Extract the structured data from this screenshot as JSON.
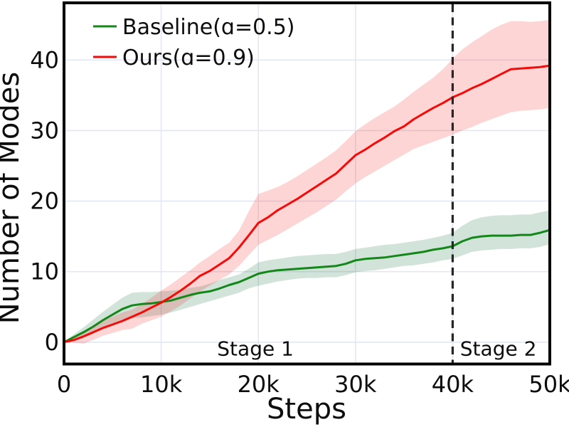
{
  "chart_data": {
    "type": "line",
    "title": "",
    "xlabel": "Steps",
    "ylabel": "Number of Modes",
    "xlim": [
      0,
      50000
    ],
    "ylim": [
      -3.1,
      48.1
    ],
    "grid": true,
    "legend_position": "upper-left",
    "colors": {
      "grid": "#e3e7f2",
      "spine": "#000000",
      "text": "#0d0d0d",
      "stage_divider": "#262626"
    },
    "x_ticks": [
      {
        "value": 0,
        "label": "0"
      },
      {
        "value": 10000,
        "label": "10k"
      },
      {
        "value": 20000,
        "label": "20k"
      },
      {
        "value": 30000,
        "label": "30k"
      },
      {
        "value": 40000,
        "label": "40k"
      },
      {
        "value": 50000,
        "label": "50k"
      }
    ],
    "y_ticks": [
      {
        "value": 0,
        "label": "0"
      },
      {
        "value": 10,
        "label": "10"
      },
      {
        "value": 20,
        "label": "20"
      },
      {
        "value": 30,
        "label": "30"
      },
      {
        "value": 40,
        "label": "40"
      }
    ],
    "x": [
      0,
      1000,
      2000,
      3000,
      4000,
      5000,
      6000,
      7000,
      8000,
      9000,
      10000,
      11000,
      12000,
      13000,
      14000,
      15000,
      16000,
      17000,
      18000,
      19000,
      20000,
      21000,
      22000,
      23000,
      24000,
      25000,
      26000,
      27000,
      28000,
      29000,
      30000,
      31000,
      32000,
      33000,
      34000,
      35000,
      36000,
      37000,
      38000,
      39000,
      40000,
      41000,
      42000,
      43000,
      44000,
      45000,
      46000,
      47000,
      48000,
      49000,
      50000
    ],
    "series": [
      {
        "name": "Baseline(ɑ=0.5)",
        "color": "#148719",
        "band_color": "rgba(30,115,70,0.2)",
        "values": [
          0.0,
          0.7,
          1.4,
          2.2,
          3.1,
          3.9,
          4.7,
          5.2,
          5.4,
          5.5,
          5.7,
          5.9,
          6.3,
          6.7,
          7.0,
          7.2,
          7.6,
          8.1,
          8.5,
          9.1,
          9.7,
          10.0,
          10.2,
          10.3,
          10.4,
          10.5,
          10.6,
          10.7,
          10.8,
          11.1,
          11.6,
          11.8,
          11.9,
          12.0,
          12.2,
          12.4,
          12.6,
          12.8,
          13.1,
          13.3,
          13.6,
          14.3,
          14.8,
          15.0,
          15.1,
          15.1,
          15.1,
          15.2,
          15.2,
          15.5,
          15.9
        ],
        "band_upper": [
          0.0,
          1.1,
          2.1,
          3.2,
          4.3,
          5.3,
          6.3,
          7.0,
          7.1,
          7.1,
          7.2,
          7.3,
          7.4,
          7.7,
          7.9,
          8.3,
          8.8,
          9.2,
          9.6,
          10.4,
          11.3,
          11.6,
          11.8,
          12.0,
          12.2,
          12.3,
          12.4,
          12.5,
          12.5,
          12.8,
          13.2,
          13.4,
          13.6,
          13.8,
          13.9,
          14.1,
          14.3,
          14.5,
          14.8,
          15.1,
          15.5,
          16.5,
          17.3,
          17.7,
          17.9,
          18.0,
          18.0,
          18.1,
          18.1,
          18.4,
          18.7
        ],
        "band_lower": [
          0.0,
          0.4,
          0.8,
          1.4,
          2.0,
          2.6,
          3.2,
          3.4,
          3.5,
          3.7,
          3.9,
          4.2,
          4.6,
          5.0,
          5.4,
          5.8,
          6.2,
          6.6,
          7.0,
          7.6,
          8.0,
          8.3,
          8.6,
          8.8,
          9.0,
          9.1,
          9.1,
          9.2,
          9.2,
          9.5,
          9.9,
          10.1,
          10.2,
          10.4,
          10.6,
          10.8,
          10.9,
          11.1,
          11.3,
          11.6,
          11.8,
          12.3,
          12.8,
          13.0,
          13.1,
          13.2,
          13.2,
          13.3,
          13.3,
          13.5,
          13.9
        ]
      },
      {
        "name": "Ours(ɑ=0.9)",
        "color": "#f50a0a",
        "band_color": "rgba(245,30,30,0.19)",
        "values": [
          0.0,
          0.3,
          0.8,
          1.4,
          2.0,
          2.5,
          3.0,
          3.6,
          4.2,
          4.9,
          5.6,
          6.4,
          7.3,
          8.3,
          9.4,
          10.1,
          11.0,
          11.9,
          13.4,
          15.1,
          16.9,
          17.7,
          18.7,
          19.5,
          20.3,
          21.2,
          22.1,
          23.0,
          23.9,
          25.2,
          26.5,
          27.3,
          28.2,
          29.0,
          29.9,
          30.6,
          31.6,
          32.4,
          33.2,
          33.9,
          34.7,
          35.3,
          36.0,
          36.6,
          37.3,
          38.0,
          38.7,
          38.8,
          38.9,
          39.0,
          39.2
        ],
        "band_upper": [
          0.0,
          0.7,
          1.5,
          2.2,
          3.0,
          3.6,
          4.2,
          4.6,
          5.4,
          6.3,
          7.3,
          8.2,
          9.2,
          10.2,
          11.3,
          12.2,
          13.2,
          14.1,
          15.8,
          18.5,
          21.0,
          21.5,
          22.0,
          22.7,
          23.5,
          24.4,
          25.3,
          26.2,
          27.2,
          28.5,
          29.9,
          30.9,
          31.8,
          32.6,
          33.4,
          34.4,
          35.5,
          36.5,
          37.5,
          38.7,
          40.2,
          41.5,
          42.5,
          43.4,
          44.3,
          45.0,
          45.5,
          45.5,
          45.4,
          45.5,
          45.7
        ],
        "band_lower": [
          0.0,
          -0.1,
          -0.2,
          0.3,
          0.9,
          1.3,
          1.7,
          1.9,
          2.6,
          3.1,
          3.6,
          4.4,
          5.2,
          6.2,
          7.2,
          8.0,
          8.8,
          9.6,
          10.8,
          12.3,
          13.8,
          14.5,
          15.2,
          16.0,
          16.8,
          17.6,
          18.4,
          19.3,
          20.2,
          21.4,
          22.5,
          23.4,
          24.2,
          25.0,
          25.8,
          26.6,
          27.4,
          27.9,
          28.4,
          28.9,
          29.4,
          30.0,
          30.5,
          31.1,
          31.6,
          32.1,
          32.6,
          32.8,
          32.9,
          33.0,
          33.2
        ]
      }
    ],
    "annotations": {
      "stage_divider": {
        "x": 40000,
        "style": "dashed",
        "color": "#262626"
      },
      "stage_labels": [
        {
          "label": "Stage 1",
          "x": 19700,
          "y": -0.9
        },
        {
          "label": "Stage 2",
          "x": 44700,
          "y": -0.9
        }
      ]
    }
  }
}
